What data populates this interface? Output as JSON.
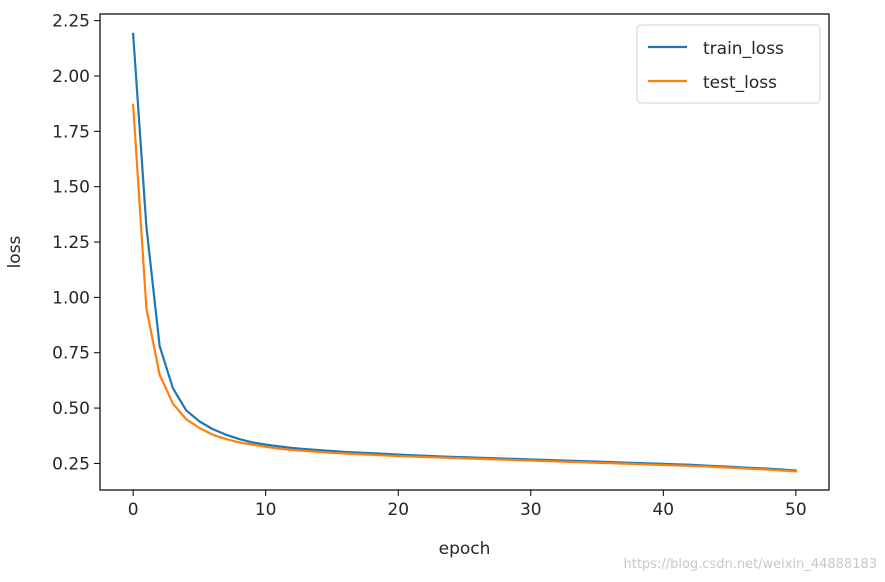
{
  "chart_data": {
    "type": "line",
    "xlabel": "epoch",
    "ylabel": "loss",
    "xlim": [
      -2.5,
      52.5
    ],
    "ylim": [
      0.13,
      2.28
    ],
    "xticks": [
      0,
      10,
      20,
      30,
      40,
      50
    ],
    "yticks": [
      0.25,
      0.5,
      0.75,
      1.0,
      1.25,
      1.5,
      1.75,
      2.0,
      2.25
    ],
    "ytick_labels": [
      "0.25",
      "0.50",
      "0.75",
      "1.00",
      "1.25",
      "1.50",
      "1.75",
      "2.00",
      "2.25"
    ],
    "legend_position": "top-right",
    "grid": false,
    "x": [
      0,
      1,
      2,
      3,
      4,
      5,
      6,
      7,
      8,
      9,
      10,
      11,
      12,
      13,
      14,
      15,
      16,
      17,
      18,
      19,
      20,
      21,
      22,
      23,
      24,
      25,
      26,
      27,
      28,
      29,
      30,
      31,
      32,
      33,
      34,
      35,
      36,
      37,
      38,
      39,
      40,
      41,
      42,
      43,
      44,
      45,
      46,
      47,
      48,
      49,
      50
    ],
    "series": [
      {
        "name": "train_loss",
        "color": "#1f77b4",
        "values": [
          2.19,
          1.32,
          0.78,
          0.59,
          0.49,
          0.44,
          0.405,
          0.38,
          0.36,
          0.345,
          0.335,
          0.327,
          0.32,
          0.315,
          0.31,
          0.306,
          0.302,
          0.299,
          0.296,
          0.293,
          0.29,
          0.287,
          0.285,
          0.282,
          0.28,
          0.278,
          0.276,
          0.274,
          0.272,
          0.27,
          0.268,
          0.266,
          0.264,
          0.262,
          0.26,
          0.258,
          0.256,
          0.254,
          0.252,
          0.25,
          0.248,
          0.246,
          0.244,
          0.241,
          0.238,
          0.235,
          0.232,
          0.229,
          0.226,
          0.222,
          0.218
        ]
      },
      {
        "name": "test_loss",
        "color": "#ff7f0e",
        "values": [
          1.87,
          0.95,
          0.65,
          0.52,
          0.45,
          0.41,
          0.38,
          0.36,
          0.345,
          0.335,
          0.325,
          0.317,
          0.311,
          0.306,
          0.302,
          0.298,
          0.295,
          0.292,
          0.289,
          0.286,
          0.283,
          0.281,
          0.279,
          0.277,
          0.275,
          0.273,
          0.271,
          0.269,
          0.267,
          0.265,
          0.263,
          0.261,
          0.259,
          0.257,
          0.255,
          0.253,
          0.251,
          0.249,
          0.247,
          0.245,
          0.243,
          0.241,
          0.239,
          0.237,
          0.234,
          0.231,
          0.228,
          0.225,
          0.222,
          0.218,
          0.214
        ]
      }
    ]
  },
  "watermark": "https://blog.csdn.net/weixin_44888183"
}
